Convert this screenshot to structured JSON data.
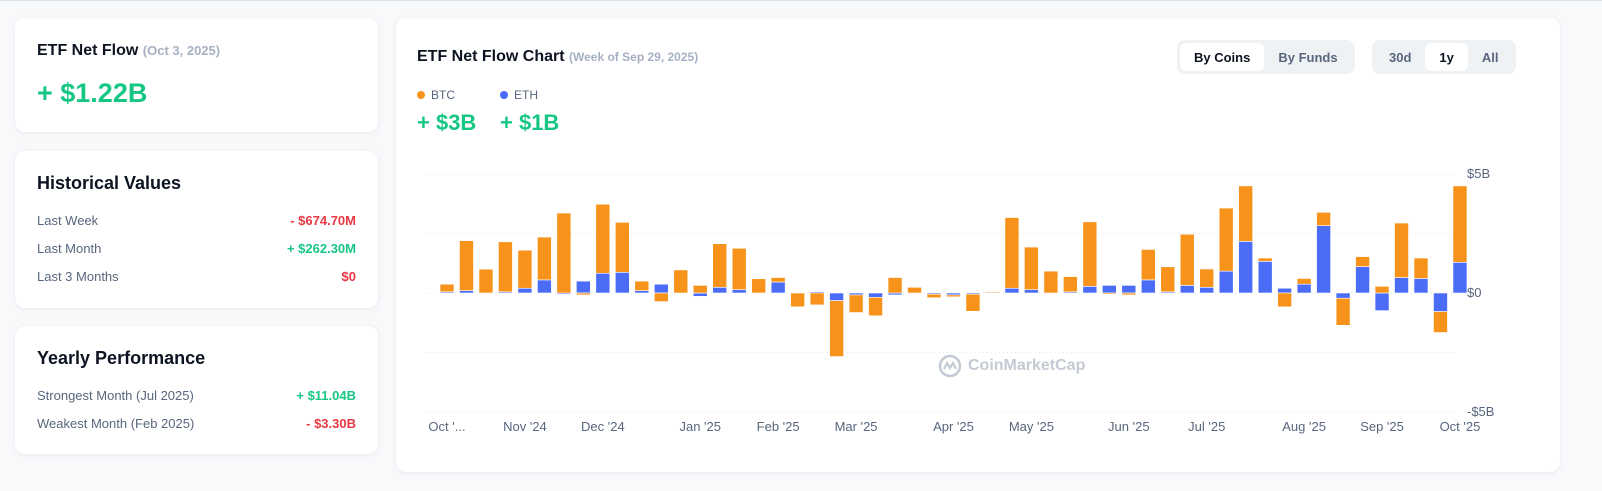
{
  "summary": {
    "title": "ETF Net Flow",
    "date": "(Oct 3, 2025)",
    "value": "+ $1.22B"
  },
  "historical": {
    "title": "Historical Values",
    "rows": [
      {
        "label": "Last Week",
        "value": "- $674.70M"
      },
      {
        "label": "Last Month",
        "value": "+ $262.30M"
      },
      {
        "label": "Last 3 Months",
        "value": "$0"
      }
    ]
  },
  "yearly": {
    "title": "Yearly Performance",
    "rows": [
      {
        "label": "Strongest Month",
        "period": "(Jul 2025)",
        "value": "+ $11.04B"
      },
      {
        "label": "Weakest Month",
        "period": "(Feb 2025)",
        "value": "- $3.30B"
      }
    ]
  },
  "panel": {
    "title": "ETF Net Flow Chart",
    "subtitle": "(Week of Sep 29, 2025)",
    "view_tabs": [
      "By Coins",
      "By Funds"
    ],
    "view_active": "By Coins",
    "range_tabs": [
      "30d",
      "1y",
      "All"
    ],
    "range_active": "1y",
    "legend": [
      {
        "name": "BTC",
        "total": "+ $3B",
        "color": "#f7931a"
      },
      {
        "name": "ETH",
        "total": "+ $1B",
        "color": "#4a6cf7"
      }
    ],
    "watermark": "CoinMarketCap"
  },
  "colors": {
    "positive": "#16c784",
    "negative": "#ea3943",
    "btc": "#f7931a",
    "eth": "#4a6cf7"
  },
  "chart_data": {
    "type": "bar",
    "stacked": true,
    "ylim": [
      -5,
      5
    ],
    "y_ticks": [
      {
        "value": 5,
        "label": "$5B"
      },
      {
        "value": 0,
        "label": "$0"
      },
      {
        "value": -5,
        "label": "-$5B"
      }
    ],
    "grid": true,
    "x_tick_labels": [
      "Oct '...",
      "Nov '24",
      "Dec '24",
      "Jan '25",
      "Feb '25",
      "Mar '25",
      "Apr '25",
      "May '25",
      "Jun '25",
      "Jul '25",
      "Aug '25",
      "Sep '25",
      "Oct '25"
    ],
    "x_tick_bar_index": [
      0,
      4,
      8,
      13,
      17,
      21,
      26,
      30,
      35,
      39,
      44,
      48,
      52
    ],
    "unit": "billion USD, weekly",
    "series": [
      {
        "name": "BTC",
        "values": [
          0.32,
          2.1,
          1.0,
          2.1,
          1.6,
          1.8,
          3.36,
          -0.08,
          2.9,
          2.1,
          0.4,
          -0.36,
          0.97,
          0.32,
          1.83,
          1.74,
          0.6,
          0.19,
          -0.58,
          -0.5,
          -2.35,
          -0.74,
          -0.78,
          0.65,
          0.24,
          -0.15,
          -0.08,
          -0.72,
          0.03,
          2.97,
          1.79,
          0.92,
          0.64,
          2.71,
          -0.05,
          -0.08,
          1.28,
          1.05,
          2.15,
          0.77,
          2.65,
          2.33,
          0.14,
          -0.58,
          0.24,
          0.56,
          -1.14,
          0.42,
          0.28,
          2.29,
          0.86,
          -0.88,
          3.21
        ]
      },
      {
        "name": "ETH",
        "values": [
          0.05,
          0.1,
          0,
          0.05,
          0.2,
          0.55,
          -0.05,
          0.5,
          0.83,
          0.87,
          0.1,
          0.37,
          0,
          -0.14,
          0.24,
          0.14,
          0,
          0.46,
          0,
          0.05,
          -0.32,
          -0.08,
          -0.18,
          -0.08,
          0,
          -0.05,
          -0.08,
          -0.05,
          0,
          0.2,
          0.14,
          0,
          0.05,
          0.28,
          0.32,
          0.32,
          0.55,
          0.05,
          0.32,
          0.24,
          0.92,
          2.17,
          1.33,
          0.2,
          0.37,
          2.83,
          -0.22,
          1.11,
          -0.74,
          0.65,
          0.61,
          -0.78,
          1.29
        ]
      }
    ]
  }
}
